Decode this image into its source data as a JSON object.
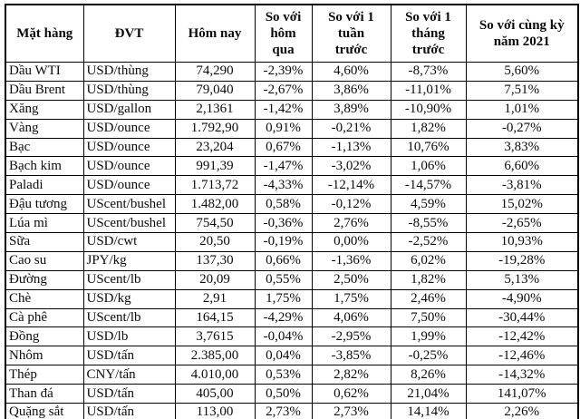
{
  "table": {
    "columns": [
      {
        "key": "name",
        "label": "Mặt hàng"
      },
      {
        "key": "unit",
        "label": "ĐVT"
      },
      {
        "key": "today",
        "label": "Hôm nay"
      },
      {
        "key": "vs_yesterday",
        "label": "So với\nhôm\nqua"
      },
      {
        "key": "vs_week",
        "label": "So với 1\ntuần\ntrước"
      },
      {
        "key": "vs_month",
        "label": "So với 1\ntháng\ntrước"
      },
      {
        "key": "vs_2021",
        "label": "So với cùng kỳ\nnăm 2021"
      }
    ],
    "rows": [
      {
        "name": "Dầu WTI",
        "unit": "USD/thùng",
        "today": "74,290",
        "vs_yesterday": "-2,39%",
        "vs_week": "4,60%",
        "vs_month": "-8,73%",
        "vs_2021": "5,60%"
      },
      {
        "name": "Dầu Brent",
        "unit": "USD/thùng",
        "today": "79,040",
        "vs_yesterday": "-2,67%",
        "vs_week": "3,86%",
        "vs_month": "-11,01%",
        "vs_2021": "7,51%"
      },
      {
        "name": "Xăng",
        "unit": "USD/gallon",
        "today": "2,1361",
        "vs_yesterday": "-1,42%",
        "vs_week": "3,89%",
        "vs_month": "-10,90%",
        "vs_2021": "1,01%"
      },
      {
        "name": "Vàng",
        "unit": "USD/ounce",
        "today": "1.792,90",
        "vs_yesterday": "0,91%",
        "vs_week": "-0,21%",
        "vs_month": "1,82%",
        "vs_2021": "-0,27%"
      },
      {
        "name": "Bạc",
        "unit": "USD/ounce",
        "today": "23,204",
        "vs_yesterday": "0,67%",
        "vs_week": "-1,13%",
        "vs_month": "10,76%",
        "vs_2021": "3,83%"
      },
      {
        "name": "Bạch kim",
        "unit": "USD/ounce",
        "today": "991,39",
        "vs_yesterday": "-1,47%",
        "vs_week": "-3,02%",
        "vs_month": "1,06%",
        "vs_2021": "6,60%"
      },
      {
        "name": "Paladi",
        "unit": "USD/ounce",
        "today": "1.713,72",
        "vs_yesterday": "-4,33%",
        "vs_week": "-12,14%",
        "vs_month": "-14,57%",
        "vs_2021": "-3,81%"
      },
      {
        "name": "Đậu tương",
        "unit": "UScent/bushel",
        "today": "1.482,00",
        "vs_yesterday": "0,58%",
        "vs_week": "-0,12%",
        "vs_month": "4,59%",
        "vs_2021": "15,02%"
      },
      {
        "name": "Lúa mì",
        "unit": "UScent/bushel",
        "today": "754,50",
        "vs_yesterday": "-0,36%",
        "vs_week": "2,76%",
        "vs_month": "-8,55%",
        "vs_2021": "-2,65%"
      },
      {
        "name": "Sữa",
        "unit": "USD/cwt",
        "today": "20,50",
        "vs_yesterday": "-0,19%",
        "vs_week": "0,00%",
        "vs_month": "-2,52%",
        "vs_2021": "10,93%"
      },
      {
        "name": "Cao su",
        "unit": "JPY/kg",
        "today": "137,30",
        "vs_yesterday": "0,66%",
        "vs_week": "-1,36%",
        "vs_month": "6,02%",
        "vs_2021": "-19,28%"
      },
      {
        "name": "Đường",
        "unit": "UScent/lb",
        "today": "20,09",
        "vs_yesterday": "0,55%",
        "vs_week": "2,50%",
        "vs_month": "1,82%",
        "vs_2021": "5,13%"
      },
      {
        "name": "Chè",
        "unit": "USD/kg",
        "today": "2,91",
        "vs_yesterday": "1,75%",
        "vs_week": "1,75%",
        "vs_month": "2,46%",
        "vs_2021": "-4,90%"
      },
      {
        "name": "Cà phê",
        "unit": "UScent/lb",
        "today": "164,15",
        "vs_yesterday": "-4,29%",
        "vs_week": "4,06%",
        "vs_month": "7,50%",
        "vs_2021": "-30,44%"
      },
      {
        "name": "Đồng",
        "unit": "USD/lb",
        "today": "3,7615",
        "vs_yesterday": "-0,04%",
        "vs_week": "-2,95%",
        "vs_month": "1,99%",
        "vs_2021": "-12,42%"
      },
      {
        "name": "Nhôm",
        "unit": "USD/tấn",
        "today": "2.385,00",
        "vs_yesterday": "0,04%",
        "vs_week": "-3,85%",
        "vs_month": "-0,25%",
        "vs_2021": "-12,46%"
      },
      {
        "name": "Thép",
        "unit": "CNY/tấn",
        "today": "4.010,00",
        "vs_yesterday": "0,53%",
        "vs_week": "2,82%",
        "vs_month": "8,26%",
        "vs_2021": "-14,32%"
      },
      {
        "name": "Than đá",
        "unit": "USD/tấn",
        "today": "405,00",
        "vs_yesterday": "0,50%",
        "vs_week": "0,62%",
        "vs_month": "21,04%",
        "vs_2021": "141,07%"
      },
      {
        "name": "Quặng sắt",
        "unit": "USD/tấn",
        "today": "113,00",
        "vs_yesterday": "2,73%",
        "vs_week": "2,73%",
        "vs_month": "14,14%",
        "vs_2021": "2,26%"
      }
    ]
  }
}
